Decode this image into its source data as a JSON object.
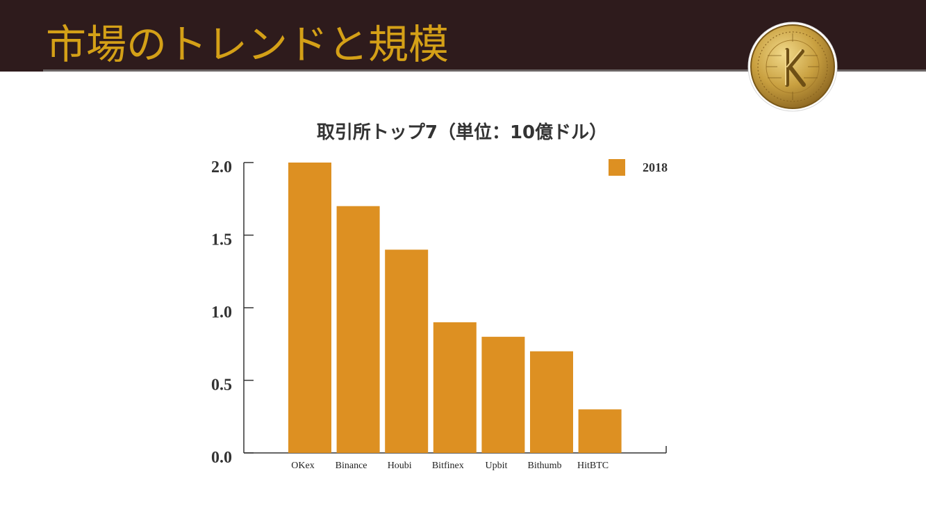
{
  "slide": {
    "title": "市場のトレンドと規模"
  },
  "logo": {
    "icon": "coin-k-logo-icon"
  },
  "chart_data": {
    "type": "bar",
    "title": "取引所トップ7（単位：10億ドル）",
    "categories": [
      "OKex",
      "Binance",
      "Houbi",
      "Bitfinex",
      "Upbit",
      "Bithumb",
      "HitBTC"
    ],
    "series": [
      {
        "name": "2018",
        "values": [
          2.0,
          1.7,
          1.4,
          0.9,
          0.8,
          0.7,
          0.3
        ],
        "color": "#dd9022"
      }
    ],
    "yticks": [
      "0.0",
      "0.5",
      "1.0",
      "1.5",
      "2.0"
    ],
    "ylim": [
      0,
      2.0
    ],
    "grid": false,
    "legend": "top-right"
  }
}
